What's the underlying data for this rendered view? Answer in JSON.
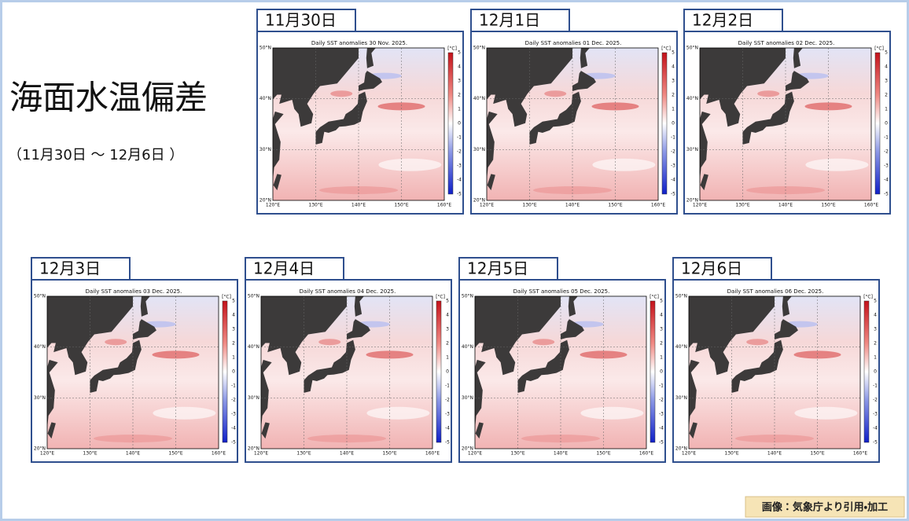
{
  "header": {
    "title": "海面水温偏差",
    "subtitle": "（11月30日 ～ 12月6日 ）"
  },
  "panels": [
    {
      "label": "11月30日",
      "map_title": "Daily SST anomalies 30 Nov. 2025."
    },
    {
      "label": "12月1日",
      "map_title": "Daily SST anomalies 01 Dec. 2025."
    },
    {
      "label": "12月2日",
      "map_title": "Daily SST anomalies 02 Dec. 2025."
    },
    {
      "label": "12月3日",
      "map_title": "Daily SST anomalies 03 Dec. 2025."
    },
    {
      "label": "12月4日",
      "map_title": "Daily SST anomalies 04 Dec. 2025."
    },
    {
      "label": "12月5日",
      "map_title": "Daily SST anomalies 05 Dec. 2025."
    },
    {
      "label": "12月6日",
      "map_title": "Daily SST anomalies 06 Dec. 2025."
    }
  ],
  "map_axes": {
    "lat_labels": [
      "50°N",
      "40°N",
      "30°N",
      "20°N"
    ],
    "lon_labels": [
      "120°E",
      "130°E",
      "140°E",
      "150°E",
      "160°E"
    ]
  },
  "colorbar": {
    "unit": "[°C]",
    "labels": [
      5,
      4,
      3,
      2,
      1,
      0,
      -1,
      -2,
      -3,
      -4,
      -5
    ]
  },
  "credit": "画像：気象庁より引用・加工"
}
